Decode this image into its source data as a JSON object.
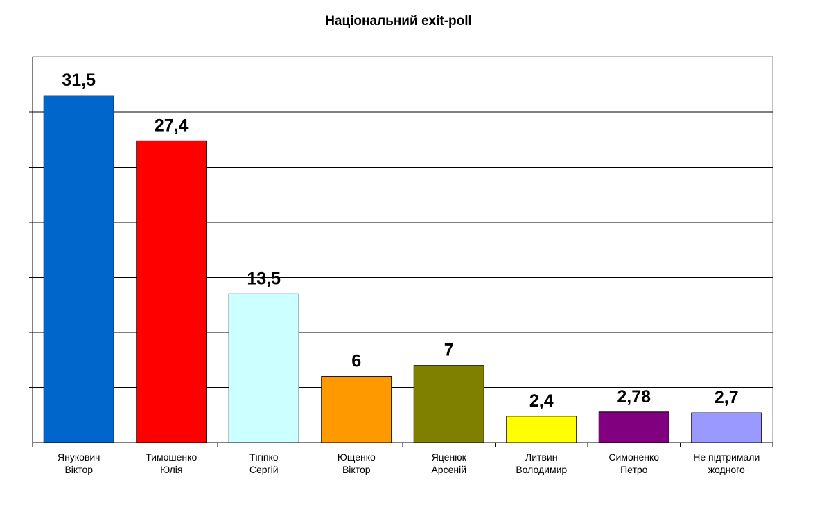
{
  "chart_data": {
    "type": "bar",
    "title": "Національний exit-poll",
    "xlabel": "",
    "ylabel": "",
    "ylim": [
      0,
      35
    ],
    "grid": true,
    "legend": "none",
    "categories": [
      [
        "Янукович",
        "Віктор"
      ],
      [
        "Тимошенко",
        "Юлія"
      ],
      [
        "Тігіпко",
        "Сергій"
      ],
      [
        "Ющенко",
        "Віктор"
      ],
      [
        "Яценюк",
        "Арсеній"
      ],
      [
        "Литвин",
        "Володимир"
      ],
      [
        "Симоненко",
        "Петро"
      ],
      [
        "Не підтримали",
        "жодного"
      ]
    ],
    "values": [
      31.5,
      27.4,
      13.5,
      6,
      7,
      2.4,
      2.78,
      2.7
    ],
    "value_labels": [
      "31,5",
      "27,4",
      "13,5",
      "6",
      "7",
      "2,4",
      "2,78",
      "2,7"
    ],
    "colors": [
      "#0066CC",
      "#FF0000",
      "#CCFFFF",
      "#FF9900",
      "#808000",
      "#FFFF00",
      "#800080",
      "#9999FF"
    ]
  }
}
